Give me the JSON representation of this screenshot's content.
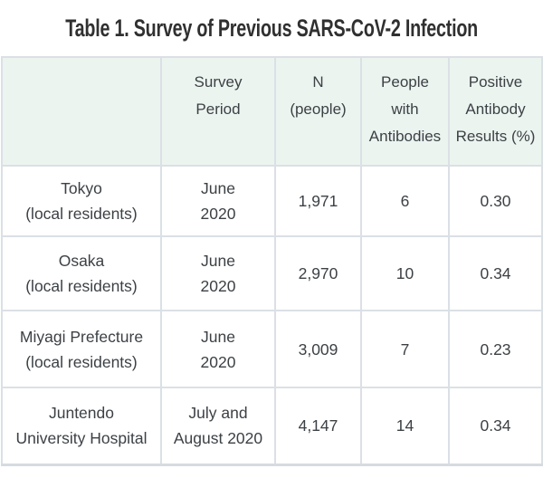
{
  "title": "Table 1. Survey of Previous SARS-CoV-2 Infection",
  "colors": {
    "header_bg": "#ecf4f0",
    "grid_border": "#dbe0e5",
    "body_text": "#3c4145",
    "title_text": "#303030"
  },
  "table": {
    "header": [
      [
        ""
      ],
      [
        "Survey",
        "Period"
      ],
      [
        "N",
        "(people)"
      ],
      [
        "People",
        "with",
        "Antibodies"
      ],
      [
        "Positive",
        "Antibody",
        "Results (%)"
      ]
    ],
    "rows": [
      [
        [
          "Tokyo",
          "(local residents)"
        ],
        [
          "June",
          "2020"
        ],
        [
          "1,971"
        ],
        [
          "6"
        ],
        [
          "0.30"
        ]
      ],
      [
        [
          "Osaka",
          "(local residents)"
        ],
        [
          "June",
          "2020"
        ],
        [
          "2,970"
        ],
        [
          "10"
        ],
        [
          "0.34"
        ]
      ],
      [
        [
          "Miyagi Prefecture",
          "(local residents)"
        ],
        [
          "June",
          "2020"
        ],
        [
          "3,009"
        ],
        [
          "7"
        ],
        [
          "0.23"
        ]
      ],
      [
        [
          "Juntendo",
          "University Hospital"
        ],
        [
          "July and",
          "August 2020"
        ],
        [
          "4,147"
        ],
        [
          "14"
        ],
        [
          "0.34"
        ]
      ]
    ],
    "row_keys": [
      "tokyo",
      "osaka",
      "miyagi-prefecture",
      "juntendo-university-hospital"
    ],
    "column_keys": [
      "location",
      "survey-period",
      "n-people",
      "people-with-antibodies",
      "positive-antibody-results"
    ]
  }
}
